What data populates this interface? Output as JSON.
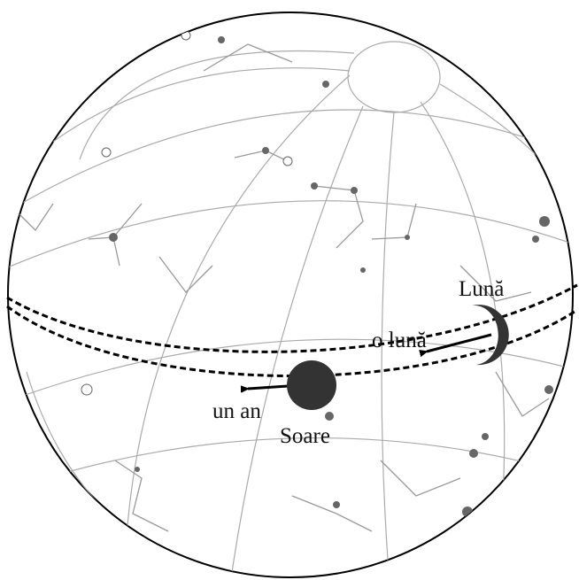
{
  "labels": {
    "moon": "Lună",
    "month": "o lună",
    "year": "un an",
    "sun": "Soare"
  }
}
